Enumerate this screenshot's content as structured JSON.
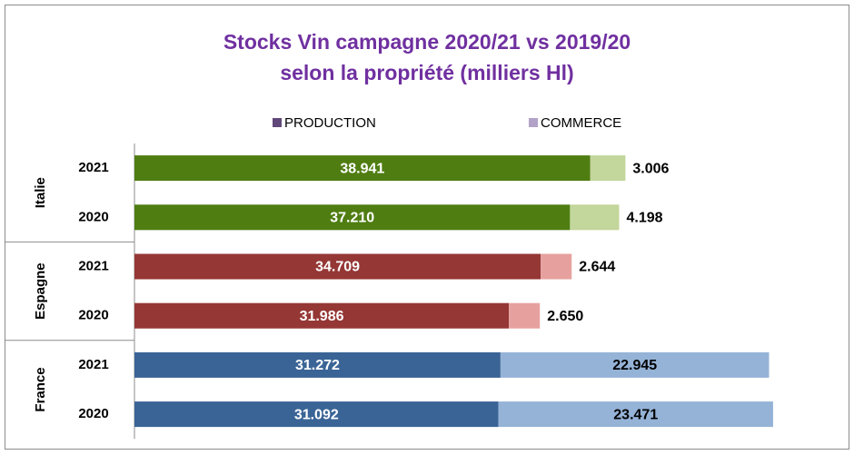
{
  "chart_data": {
    "type": "bar",
    "orientation": "horizontal",
    "stacked": true,
    "title": [
      "Stocks Vin campagne 2020/21 vs 2019/20",
      "selon la propriété (milliers Hl)"
    ],
    "groups": [
      {
        "name": "Italie",
        "categories": [
          "2021",
          "2020"
        ],
        "colors": [
          "#4f7d12",
          "#c3d69b"
        ]
      },
      {
        "name": "Espagne",
        "categories": [
          "2021",
          "2020"
        ],
        "colors": [
          "#953735",
          "#e6a19f"
        ]
      },
      {
        "name": "France",
        "categories": [
          "2021",
          "2020"
        ],
        "colors": [
          "#3a6496",
          "#95b3d7"
        ]
      }
    ],
    "series": [
      {
        "name": "PRODUCTION",
        "color": "#60497a",
        "values": [
          38941,
          37210,
          34709,
          31986,
          31272,
          31092
        ],
        "value_labels": [
          "38.941",
          "37.210",
          "34.709",
          "31.986",
          "31.272",
          "31.092"
        ]
      },
      {
        "name": "COMMERCE",
        "color": "#b3a2c7",
        "values": [
          3006,
          4198,
          2644,
          2650,
          22945,
          23471
        ],
        "value_labels": [
          "3.006",
          "4.198",
          "2.644",
          "2.650",
          "22.945",
          "23.471"
        ]
      }
    ],
    "xlim": [
      0,
      60000
    ],
    "legend": "top"
  }
}
